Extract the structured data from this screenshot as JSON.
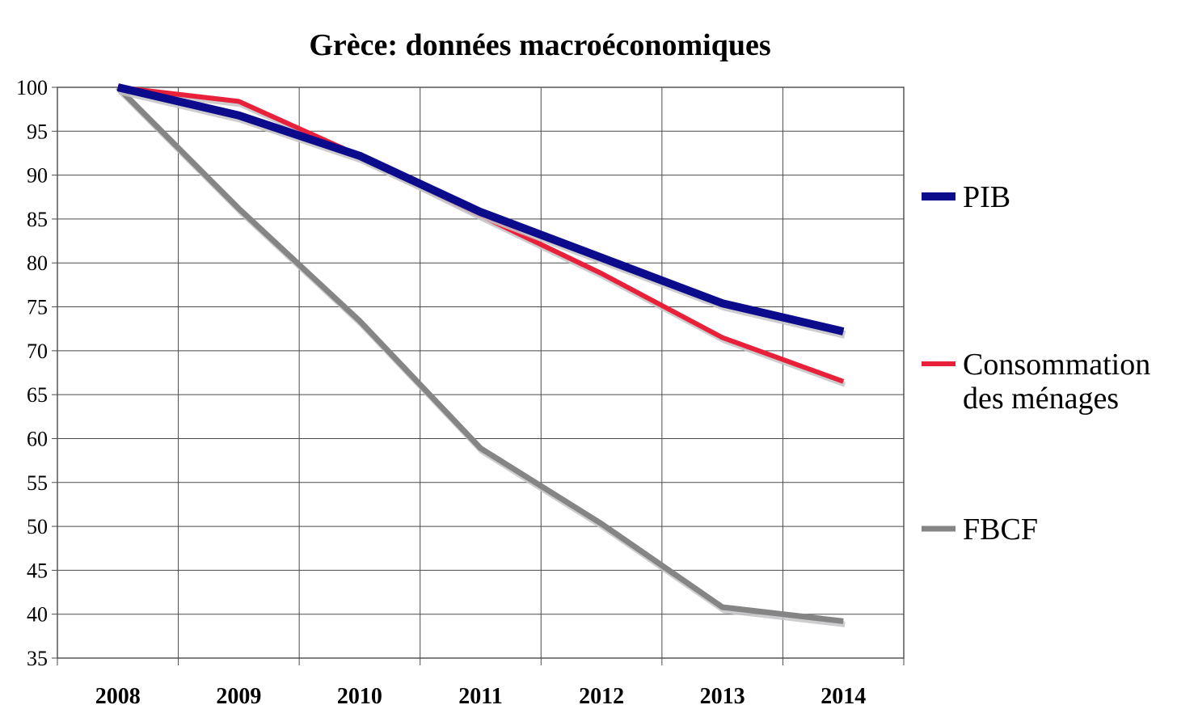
{
  "chart_data": {
    "type": "line",
    "title": "Grèce: données macroéconomiques",
    "xlabel": "",
    "ylabel": "",
    "categories": [
      "2008",
      "2009",
      "2010",
      "2011",
      "2012",
      "2013",
      "2014"
    ],
    "ylim": [
      35,
      100
    ],
    "yticks": [
      100,
      95,
      90,
      85,
      80,
      75,
      70,
      65,
      60,
      55,
      50,
      45,
      40,
      35
    ],
    "grid": true,
    "legend_position": "right",
    "series": [
      {
        "name": "PIB",
        "legend_lines": [
          "PIB"
        ],
        "color": "#0b0b8c",
        "values": [
          100,
          96.8,
          92.2,
          85.8,
          80.6,
          75.4,
          72.2
        ]
      },
      {
        "name": "Consommation des ménages",
        "legend_lines": [
          "Consommation",
          "des ménages"
        ],
        "color": "#e8203a",
        "values": [
          100,
          98.4,
          92.2,
          85.4,
          78.8,
          71.5,
          66.5
        ]
      },
      {
        "name": "FBCF",
        "legend_lines": [
          "FBCF"
        ],
        "color": "#858585",
        "values": [
          100,
          86.2,
          73.4,
          58.9,
          50.3,
          40.8,
          39.2
        ]
      }
    ]
  }
}
